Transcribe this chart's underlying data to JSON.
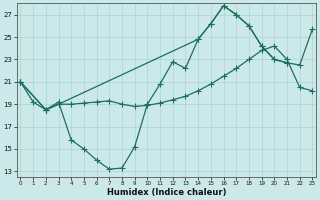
{
  "xlabel": "Humidex (Indice chaleur)",
  "bg_color": "#cce9e9",
  "line_color": "#1a7060",
  "grid_color": "#aad4d4",
  "yticks": [
    13,
    15,
    17,
    19,
    21,
    23,
    25,
    27
  ],
  "xticks": [
    0,
    1,
    2,
    3,
    4,
    5,
    6,
    7,
    8,
    9,
    10,
    11,
    12,
    13,
    14,
    15,
    16,
    17,
    18,
    19,
    20,
    21,
    22,
    23
  ],
  "line1_x": [
    0,
    1,
    2,
    3,
    4,
    5,
    6,
    7,
    8,
    9,
    10,
    11,
    12,
    13,
    14,
    15,
    16,
    17,
    18,
    19,
    20,
    21
  ],
  "line1_y": [
    21.0,
    19.2,
    18.5,
    19.2,
    15.8,
    15.0,
    14.0,
    13.2,
    13.3,
    15.2,
    19.0,
    20.8,
    22.8,
    22.2,
    24.8,
    26.2,
    27.8,
    27.0,
    26.0,
    24.2,
    23.0,
    22.7
  ],
  "line2_x": [
    0,
    2,
    3,
    4,
    5,
    6,
    7,
    8,
    9,
    10,
    11,
    12,
    13,
    14,
    15,
    16,
    17,
    18,
    19,
    20,
    21,
    22,
    23
  ],
  "line2_y": [
    21.0,
    18.5,
    19.0,
    19.0,
    19.1,
    19.2,
    19.3,
    19.0,
    18.8,
    18.9,
    19.1,
    19.4,
    19.7,
    20.2,
    20.8,
    21.5,
    22.2,
    23.0,
    23.8,
    24.2,
    23.0,
    20.5,
    20.2
  ],
  "line3_x": [
    0,
    2,
    3,
    14,
    15,
    16,
    17,
    18,
    19,
    20,
    21,
    22,
    23
  ],
  "line3_y": [
    21.0,
    18.5,
    19.0,
    24.8,
    26.2,
    27.8,
    27.0,
    26.0,
    24.2,
    23.0,
    22.7,
    22.5,
    25.7
  ]
}
